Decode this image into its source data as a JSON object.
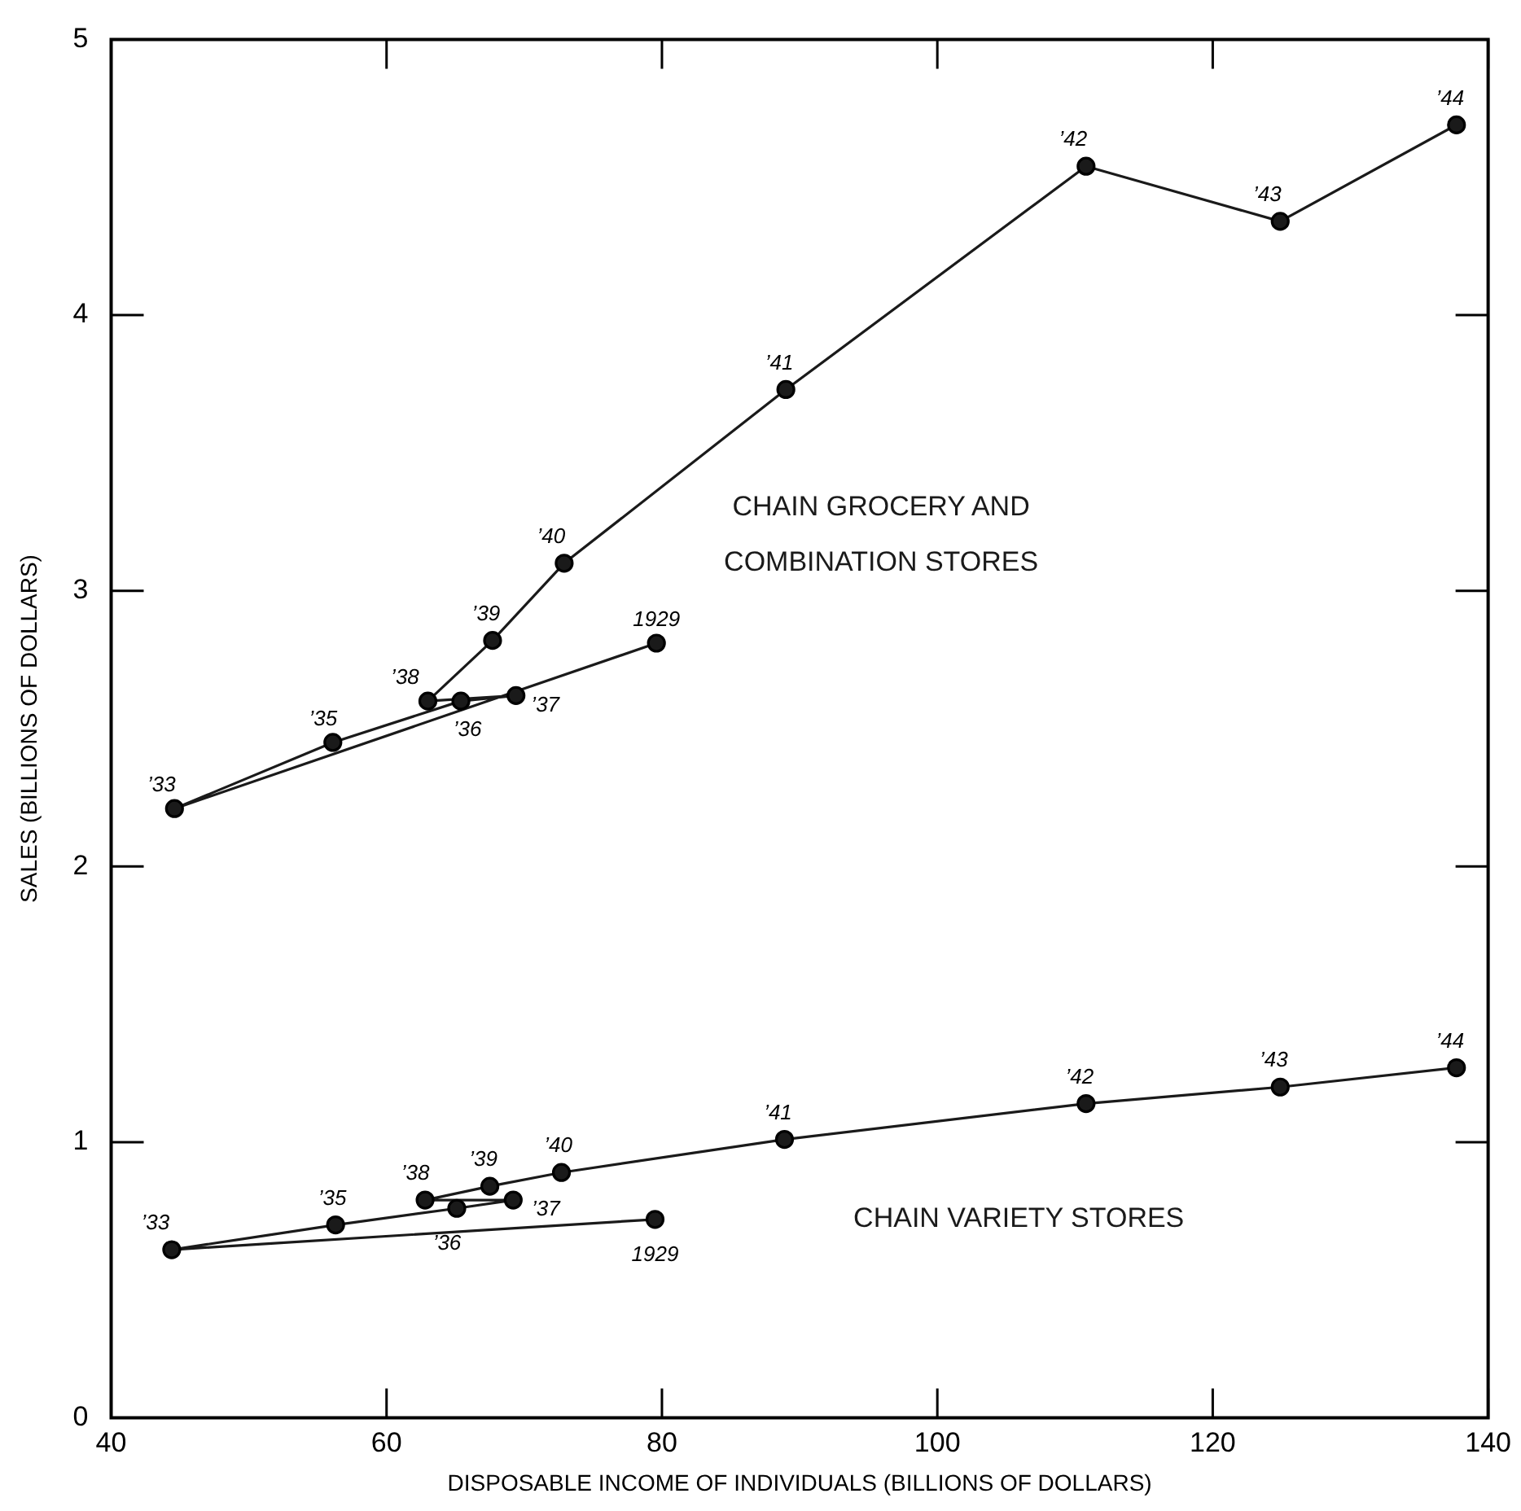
{
  "chart_data": {
    "type": "line",
    "xlabel": "DISPOSABLE INCOME OF INDIVIDUALS (BILLIONS OF DOLLARS)",
    "ylabel": "SALES (BILLIONS OF DOLLARS)",
    "xlim": [
      40,
      140
    ],
    "xticks": [
      40,
      60,
      80,
      100,
      120,
      140
    ],
    "ylim": [
      0,
      5
    ],
    "yticks": [
      0,
      1,
      2,
      3,
      4,
      5
    ],
    "grid": false,
    "legend": false,
    "marker": "circle",
    "line_style": "solid",
    "series": [
      {
        "name": "CHAIN GROCERY AND COMBINATION STORES",
        "color": "#1a1a1a",
        "x": [
          79.6,
          44.6,
          56.1,
          65.4,
          69.4,
          63.0,
          67.7,
          72.9,
          89.0,
          110.8,
          124.9,
          137.7
        ],
        "values": [
          2.81,
          2.21,
          2.45,
          2.6,
          2.62,
          2.6,
          2.82,
          3.1,
          3.73,
          4.54,
          4.34,
          4.69
        ]
      },
      {
        "name": "CHAIN VARIETY STORES",
        "color": "#1a1a1a",
        "x": [
          79.5,
          44.4,
          56.3,
          65.1,
          69.2,
          62.8,
          67.5,
          72.7,
          88.9,
          110.8,
          124.9,
          137.7
        ],
        "values": [
          0.72,
          0.61,
          0.7,
          0.76,
          0.79,
          0.79,
          0.84,
          0.89,
          1.01,
          1.14,
          1.2,
          1.27
        ]
      }
    ],
    "annotations": [
      {
        "text": "1929",
        "x": 79.6,
        "y": 2.81
      },
      {
        "text": "’33",
        "x": 44.6,
        "y": 2.21
      },
      {
        "text": "’35",
        "x": 56.1,
        "y": 2.45
      },
      {
        "text": "’36",
        "x": 65.4,
        "y": 2.6
      },
      {
        "text": "’37",
        "x": 69.4,
        "y": 2.62
      },
      {
        "text": "’38",
        "x": 63.0,
        "y": 2.6
      },
      {
        "text": "’39",
        "x": 67.7,
        "y": 2.82
      },
      {
        "text": "’40",
        "x": 72.9,
        "y": 3.1
      },
      {
        "text": "’41",
        "x": 89.0,
        "y": 3.73
      },
      {
        "text": "’42",
        "x": 110.8,
        "y": 4.54
      },
      {
        "text": "’43",
        "x": 124.9,
        "y": 4.34
      },
      {
        "text": "’44",
        "x": 137.7,
        "y": 4.69
      },
      {
        "text": "1929",
        "x": 79.5,
        "y": 0.72
      },
      {
        "text": "’33",
        "x": 44.4,
        "y": 0.61
      },
      {
        "text": "’35",
        "x": 56.3,
        "y": 0.7
      },
      {
        "text": "’36",
        "x": 65.1,
        "y": 0.76
      },
      {
        "text": "’37",
        "x": 69.2,
        "y": 0.79
      },
      {
        "text": "’38",
        "x": 62.8,
        "y": 0.79
      },
      {
        "text": "’39",
        "x": 67.5,
        "y": 0.84
      },
      {
        "text": "’40",
        "x": 72.7,
        "y": 0.89
      },
      {
        "text": "’41",
        "x": 88.9,
        "y": 1.01
      },
      {
        "text": "’42",
        "x": 110.8,
        "y": 1.14
      },
      {
        "text": "’43",
        "x": 124.9,
        "y": 1.2
      },
      {
        "text": "’44",
        "x": 137.7,
        "y": 1.27
      }
    ]
  }
}
